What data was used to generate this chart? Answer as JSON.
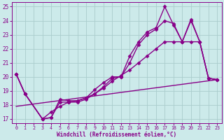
{
  "bg_color": "#cceaea",
  "grid_color": "#aacccc",
  "line_color": "#880088",
  "xlabel": "Windchill (Refroidissement éolien,°C)",
  "xlim": [
    -0.5,
    23.5
  ],
  "ylim": [
    16.7,
    25.3
  ],
  "xticks": [
    0,
    1,
    2,
    3,
    4,
    5,
    6,
    7,
    8,
    9,
    10,
    11,
    12,
    13,
    14,
    15,
    16,
    17,
    18,
    19,
    20,
    21,
    22,
    23
  ],
  "yticks": [
    17,
    18,
    19,
    20,
    21,
    22,
    23,
    24,
    25
  ],
  "series": [
    {
      "x": [
        0,
        1,
        3,
        4,
        5,
        6,
        7,
        8,
        9,
        10,
        11,
        12,
        13,
        14,
        15,
        16,
        17,
        18,
        19,
        20,
        21,
        22,
        23
      ],
      "y": [
        20.2,
        18.8,
        17.0,
        17.1,
        18.4,
        18.3,
        18.3,
        18.5,
        19.1,
        19.6,
        20.0,
        20.0,
        21.5,
        22.5,
        23.2,
        23.5,
        25.0,
        23.7,
        22.5,
        24.1,
        22.5,
        19.9,
        19.8
      ],
      "marker": "D",
      "markersize": 2.5,
      "linewidth": 1.0
    },
    {
      "x": [
        0,
        1,
        3,
        4,
        5,
        6,
        7,
        8,
        9,
        10,
        11,
        12,
        13,
        14,
        15,
        16,
        17,
        18,
        19,
        20,
        21,
        22,
        23
      ],
      "y": [
        20.2,
        18.8,
        17.0,
        17.1,
        18.2,
        18.2,
        18.2,
        18.4,
        18.8,
        19.3,
        19.9,
        20.0,
        21.0,
        22.3,
        23.0,
        23.4,
        24.0,
        23.8,
        22.5,
        24.0,
        22.5,
        19.9,
        19.8
      ],
      "marker": "D",
      "markersize": 2.5,
      "linewidth": 1.0
    },
    {
      "x": [
        0,
        1,
        3,
        4,
        5,
        6,
        7,
        8,
        9,
        10,
        11,
        12,
        13,
        14,
        15,
        16,
        17,
        18,
        19,
        20,
        21,
        22,
        23
      ],
      "y": [
        20.2,
        18.8,
        17.0,
        17.5,
        17.9,
        18.2,
        18.3,
        18.5,
        18.8,
        19.2,
        19.7,
        20.1,
        20.5,
        21.0,
        21.5,
        22.0,
        22.5,
        22.5,
        22.5,
        22.5,
        22.5,
        19.9,
        19.8
      ],
      "marker": "D",
      "markersize": 2.5,
      "linewidth": 1.0
    },
    {
      "x": [
        0,
        23
      ],
      "y": [
        17.9,
        19.8
      ],
      "marker": null,
      "markersize": 0,
      "linewidth": 1.0
    }
  ]
}
